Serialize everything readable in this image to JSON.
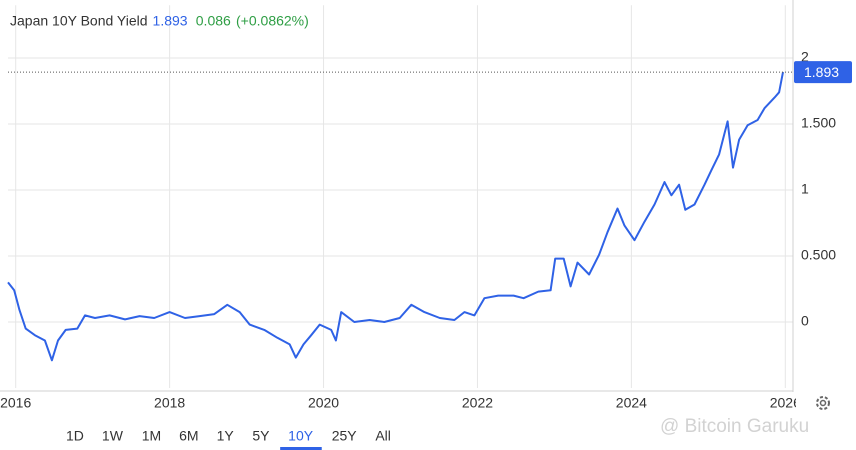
{
  "chart_data": {
    "type": "line",
    "title": "Japan 10Y Bond Yield",
    "change": "0.086",
    "change_pct": "(+0.0862%)",
    "change_color": "#2e9e44",
    "series": [
      {
        "name": "Japan 10Y Bond Yield",
        "color": "#2f62e6",
        "x": [
          2015.9,
          2015.98,
          2016.05,
          2016.13,
          2016.25,
          2016.38,
          2016.47,
          2016.55,
          2016.65,
          2016.8,
          2016.9,
          2017.03,
          2017.22,
          2017.42,
          2017.61,
          2017.8,
          2018.0,
          2018.2,
          2018.39,
          2018.58,
          2018.75,
          2018.91,
          2019.04,
          2019.23,
          2019.4,
          2019.56,
          2019.64,
          2019.74,
          2019.84,
          2019.95,
          2020.1,
          2020.16,
          2020.23,
          2020.4,
          2020.6,
          2020.79,
          2020.99,
          2021.14,
          2021.31,
          2021.51,
          2021.7,
          2021.83,
          2021.96,
          2022.09,
          2022.27,
          2022.47,
          2022.6,
          2022.79,
          2022.95,
          2023.01,
          2023.12,
          2023.21,
          2023.3,
          2023.45,
          2023.58,
          2023.69,
          2023.82,
          2023.91,
          2024.04,
          2024.17,
          2024.3,
          2024.43,
          2024.52,
          2024.62,
          2024.7,
          2024.82,
          2024.95,
          2025.04,
          2025.14,
          2025.25,
          2025.32,
          2025.4,
          2025.51,
          2025.64,
          2025.73,
          2025.86,
          2025.92,
          2025.97
        ],
        "values": [
          0.3,
          0.24,
          0.09,
          -0.05,
          -0.1,
          -0.14,
          -0.29,
          -0.14,
          -0.06,
          -0.05,
          0.05,
          0.03,
          0.05,
          0.02,
          0.045,
          0.03,
          0.075,
          0.03,
          0.045,
          0.06,
          0.13,
          0.075,
          -0.02,
          -0.06,
          -0.12,
          -0.17,
          -0.27,
          -0.17,
          -0.1,
          -0.02,
          -0.06,
          -0.14,
          0.075,
          0.0,
          0.015,
          0.0,
          0.03,
          0.13,
          0.075,
          0.03,
          0.015,
          0.075,
          0.05,
          0.18,
          0.2,
          0.2,
          0.18,
          0.23,
          0.24,
          0.48,
          0.48,
          0.27,
          0.45,
          0.36,
          0.51,
          0.68,
          0.86,
          0.73,
          0.62,
          0.76,
          0.89,
          1.06,
          0.96,
          1.04,
          0.85,
          0.89,
          1.04,
          1.15,
          1.27,
          1.52,
          1.17,
          1.38,
          1.49,
          1.53,
          1.62,
          1.7,
          1.74,
          1.893
        ]
      }
    ],
    "xlim": [
      2015.9,
      2026.1
    ],
    "xticks": [
      2016,
      2018,
      2020,
      2022,
      2024,
      2026
    ],
    "ylim": [
      -0.5,
      2.4
    ],
    "yticks": [
      0,
      {
        "value": 0.5,
        "label": "0.500"
      },
      1,
      {
        "value": 1.5,
        "label": "1.500"
      },
      2
    ],
    "grid": true,
    "range_buttons": [
      "1D",
      "1W",
      "1M",
      "6M",
      "1Y",
      "5Y",
      "10Y",
      "25Y",
      "All"
    ],
    "selected_range": "10Y",
    "watermark": "@ Bitcoin Garuku"
  }
}
